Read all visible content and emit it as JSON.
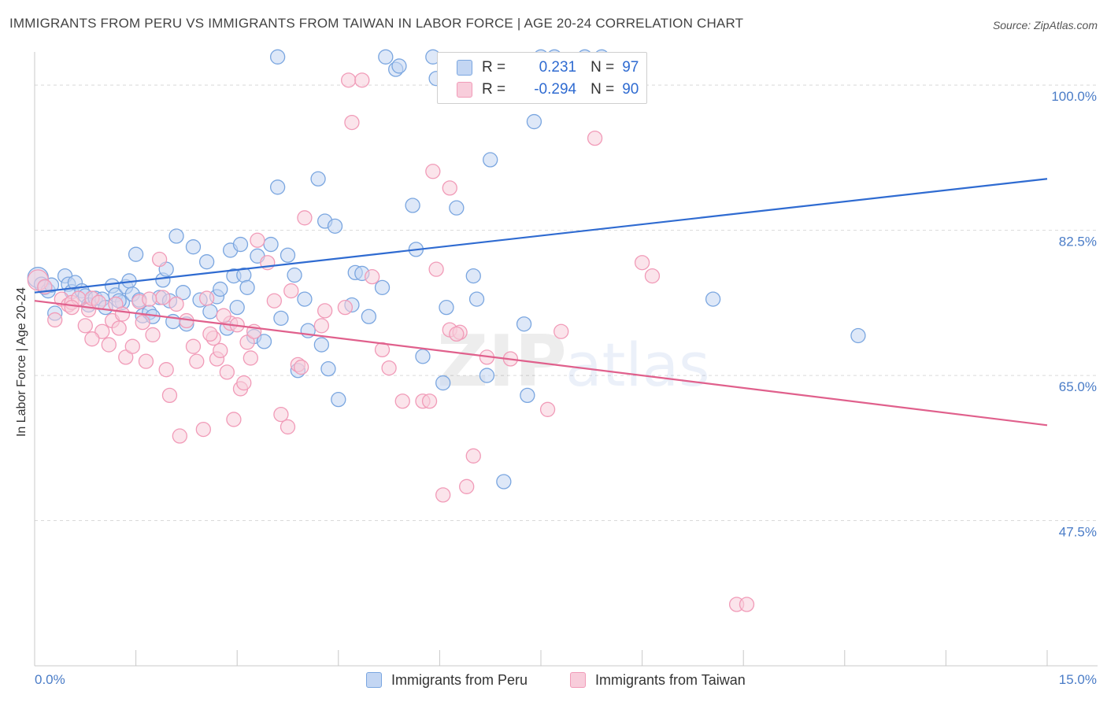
{
  "header": {
    "title": "IMMIGRANTS FROM PERU VS IMMIGRANTS FROM TAIWAN IN LABOR FORCE | AGE 20-24 CORRELATION CHART",
    "source": "Source: ZipAtlas.com"
  },
  "watermark": "ZIPatlas",
  "legend": {
    "peru": {
      "r_label": "R =",
      "r_value": "0.231",
      "n_label": "N =",
      "n_value": "97"
    },
    "taiwan": {
      "r_label": "R =",
      "r_value": "-0.294",
      "n_label": "N =",
      "n_value": "90"
    }
  },
  "chart_data": {
    "type": "scatter",
    "ylabel": "In Labor Force | Age 20-24",
    "xlim": [
      0,
      15
    ],
    "ylim": [
      30,
      104
    ],
    "x_tick_labels": [
      {
        "value": 0,
        "label": "0.0%"
      },
      {
        "value": 15,
        "label": "15.0%"
      }
    ],
    "y_ticks": [
      {
        "value": 100,
        "label": "100.0%"
      },
      {
        "value": 82.5,
        "label": "82.5%"
      },
      {
        "value": 65,
        "label": "65.0%"
      },
      {
        "value": 47.5,
        "label": "47.5%"
      }
    ],
    "x_minor_ticks": [
      1.5,
      3,
      4.5,
      6,
      7.5,
      9,
      10.5,
      12,
      13.5,
      15
    ],
    "grid": true,
    "legend_position": "bottom",
    "series": [
      {
        "name": "Immigrants from Peru",
        "color": "#7aa6e0",
        "fill": "#c3d6f3",
        "trend": {
          "x": [
            0,
            15
          ],
          "y": [
            75.0,
            88.7
          ]
        },
        "points": [
          [
            0.05,
            76.8
          ],
          [
            0.1,
            76.0
          ],
          [
            0.15,
            75.6
          ],
          [
            0.2,
            75.2
          ],
          [
            0.25,
            75.9
          ],
          [
            0.3,
            72.5
          ],
          [
            0.45,
            77.0
          ],
          [
            0.5,
            76.0
          ],
          [
            0.55,
            75.1
          ],
          [
            0.6,
            76.2
          ],
          [
            0.7,
            75.2
          ],
          [
            0.75,
            74.6
          ],
          [
            0.8,
            73.5
          ],
          [
            0.9,
            74.3
          ],
          [
            1.0,
            74.2
          ],
          [
            1.05,
            73.2
          ],
          [
            1.15,
            75.8
          ],
          [
            1.2,
            74.7
          ],
          [
            1.3,
            73.8
          ],
          [
            1.35,
            75.7
          ],
          [
            1.4,
            76.4
          ],
          [
            1.45,
            74.8
          ],
          [
            1.5,
            79.6
          ],
          [
            1.55,
            74.1
          ],
          [
            1.6,
            72.2
          ],
          [
            1.7,
            72.6
          ],
          [
            1.75,
            72.1
          ],
          [
            1.85,
            74.4
          ],
          [
            1.9,
            76.5
          ],
          [
            1.95,
            77.8
          ],
          [
            2.05,
            71.5
          ],
          [
            2.1,
            81.8
          ],
          [
            2.2,
            75.0
          ],
          [
            2.25,
            71.2
          ],
          [
            2.35,
            80.5
          ],
          [
            2.45,
            74.1
          ],
          [
            2.55,
            78.7
          ],
          [
            2.6,
            72.7
          ],
          [
            2.7,
            74.5
          ],
          [
            2.75,
            75.4
          ],
          [
            2.85,
            70.7
          ],
          [
            2.9,
            80.1
          ],
          [
            2.95,
            77.0
          ],
          [
            3.0,
            73.2
          ],
          [
            3.05,
            80.8
          ],
          [
            3.1,
            77.1
          ],
          [
            3.15,
            75.6
          ],
          [
            3.25,
            69.7
          ],
          [
            3.3,
            79.4
          ],
          [
            3.4,
            69.1
          ],
          [
            3.5,
            80.8
          ],
          [
            3.6,
            87.7
          ],
          [
            3.65,
            71.9
          ],
          [
            3.75,
            79.5
          ],
          [
            3.85,
            77.1
          ],
          [
            3.9,
            65.6
          ],
          [
            4.0,
            74.2
          ],
          [
            4.05,
            70.4
          ],
          [
            4.2,
            88.7
          ],
          [
            4.25,
            68.7
          ],
          [
            4.3,
            83.6
          ],
          [
            4.35,
            65.8
          ],
          [
            4.45,
            83.0
          ],
          [
            4.5,
            62.1
          ],
          [
            4.7,
            73.5
          ],
          [
            4.75,
            77.4
          ],
          [
            4.85,
            77.3
          ],
          [
            4.95,
            72.1
          ],
          [
            5.15,
            75.6
          ],
          [
            5.2,
            103.4
          ],
          [
            5.35,
            101.9
          ],
          [
            5.4,
            102.3
          ],
          [
            5.6,
            85.5
          ],
          [
            5.65,
            80.2
          ],
          [
            5.75,
            67.3
          ],
          [
            5.9,
            103.4
          ],
          [
            5.95,
            100.8
          ],
          [
            6.05,
            64.1
          ],
          [
            6.1,
            73.2
          ],
          [
            6.25,
            85.2
          ],
          [
            6.5,
            77.0
          ],
          [
            6.55,
            74.2
          ],
          [
            6.7,
            65.0
          ],
          [
            6.75,
            91.0
          ],
          [
            6.95,
            52.2
          ],
          [
            7.25,
            71.2
          ],
          [
            7.3,
            62.6
          ],
          [
            7.4,
            95.6
          ],
          [
            7.5,
            103.4
          ],
          [
            7.7,
            103.4
          ],
          [
            8.15,
            103.4
          ],
          [
            8.4,
            103.4
          ],
          [
            10.05,
            74.2
          ],
          [
            12.2,
            69.8
          ],
          [
            1.25,
            74.0
          ],
          [
            2.0,
            74.0
          ],
          [
            3.6,
            103.4
          ]
        ]
      },
      {
        "name": "Immigrants from Taiwan",
        "color": "#f19bb8",
        "fill": "#f8cddb",
        "trend": {
          "x": [
            0,
            15
          ],
          "y": [
            74.0,
            59.0
          ]
        },
        "points": [
          [
            0.05,
            76.5
          ],
          [
            0.15,
            75.7
          ],
          [
            0.3,
            71.7
          ],
          [
            0.4,
            74.2
          ],
          [
            0.5,
            73.5
          ],
          [
            0.55,
            73.8
          ],
          [
            0.65,
            74.3
          ],
          [
            0.75,
            71.0
          ],
          [
            0.8,
            72.9
          ],
          [
            0.85,
            74.3
          ],
          [
            0.95,
            73.8
          ],
          [
            1.0,
            70.3
          ],
          [
            1.1,
            68.7
          ],
          [
            1.15,
            71.6
          ],
          [
            1.2,
            73.6
          ],
          [
            1.3,
            72.4
          ],
          [
            1.35,
            67.2
          ],
          [
            1.45,
            68.5
          ],
          [
            1.55,
            73.9
          ],
          [
            1.6,
            71.4
          ],
          [
            1.65,
            66.7
          ],
          [
            1.75,
            69.9
          ],
          [
            1.85,
            79.0
          ],
          [
            1.9,
            74.4
          ],
          [
            1.95,
            65.7
          ],
          [
            2.0,
            62.6
          ],
          [
            2.1,
            73.6
          ],
          [
            2.15,
            57.7
          ],
          [
            2.25,
            71.6
          ],
          [
            2.35,
            68.5
          ],
          [
            2.4,
            66.7
          ],
          [
            2.5,
            58.5
          ],
          [
            2.55,
            74.3
          ],
          [
            2.65,
            69.5
          ],
          [
            2.7,
            67.0
          ],
          [
            2.75,
            68.0
          ],
          [
            2.85,
            65.4
          ],
          [
            2.9,
            71.3
          ],
          [
            2.95,
            59.7
          ],
          [
            3.05,
            63.4
          ],
          [
            3.1,
            64.1
          ],
          [
            3.15,
            69.0
          ],
          [
            3.2,
            67.1
          ],
          [
            3.25,
            70.3
          ],
          [
            3.3,
            81.3
          ],
          [
            3.45,
            78.6
          ],
          [
            3.55,
            74.0
          ],
          [
            3.65,
            60.3
          ],
          [
            3.75,
            58.8
          ],
          [
            3.8,
            75.2
          ],
          [
            3.9,
            66.3
          ],
          [
            4.0,
            84.0
          ],
          [
            4.25,
            71.0
          ],
          [
            4.3,
            72.8
          ],
          [
            4.65,
            100.6
          ],
          [
            4.7,
            95.5
          ],
          [
            4.85,
            100.6
          ],
          [
            5.0,
            76.9
          ],
          [
            5.15,
            68.1
          ],
          [
            5.25,
            65.9
          ],
          [
            5.45,
            61.9
          ],
          [
            5.75,
            61.9
          ],
          [
            5.95,
            77.8
          ],
          [
            5.85,
            61.9
          ],
          [
            6.05,
            50.6
          ],
          [
            6.15,
            70.5
          ],
          [
            6.3,
            70.2
          ],
          [
            6.4,
            51.6
          ],
          [
            6.5,
            55.3
          ],
          [
            6.7,
            67.2
          ],
          [
            7.05,
            67.0
          ],
          [
            7.6,
            60.9
          ],
          [
            7.8,
            70.3
          ],
          [
            8.3,
            93.6
          ],
          [
            9.0,
            78.6
          ],
          [
            9.15,
            77.0
          ],
          [
            10.4,
            37.4
          ],
          [
            10.55,
            37.4
          ],
          [
            6.15,
            87.6
          ],
          [
            6.25,
            70.0
          ],
          [
            5.9,
            89.6
          ],
          [
            2.8,
            72.2
          ],
          [
            1.25,
            70.7
          ],
          [
            0.55,
            73.2
          ],
          [
            1.7,
            74.2
          ],
          [
            3.0,
            71.1
          ],
          [
            4.6,
            73.2
          ],
          [
            3.95,
            66.0
          ],
          [
            2.6,
            70.0
          ],
          [
            0.85,
            69.4
          ]
        ]
      }
    ]
  }
}
